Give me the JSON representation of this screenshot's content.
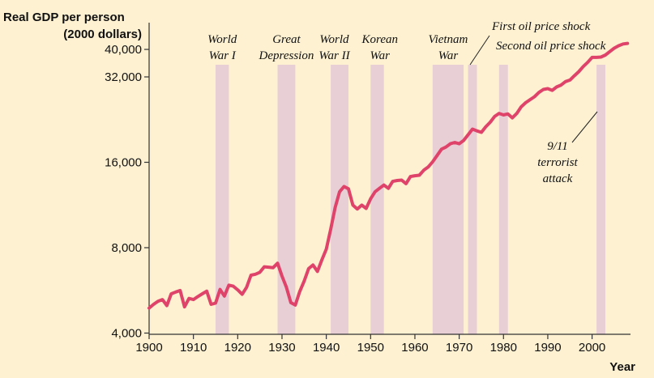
{
  "chart_data": {
    "type": "line",
    "title": "",
    "xlabel": "Year",
    "ylabel_lines": [
      "Real GDP per person",
      "(2000 dollars)"
    ],
    "yscale": "log",
    "ylim": [
      4000,
      44000
    ],
    "xlim": [
      1900,
      2010
    ],
    "yticks": [
      4000,
      8000,
      16000,
      32000,
      40000
    ],
    "ytick_labels": [
      "4,000",
      "8,000",
      "16,000",
      "32,000",
      "40,000"
    ],
    "xticks": [
      1900,
      1910,
      1920,
      1930,
      1940,
      1950,
      1960,
      1970,
      1980,
      1990,
      2000
    ],
    "xtick_labels": [
      "1900",
      "1910",
      "1920",
      "1930",
      "1940",
      "1950",
      "1960",
      "1970",
      "1980",
      "1990",
      "2000"
    ],
    "line_color": "#e0436a",
    "band_color": "#e8cfd6",
    "series": [
      {
        "name": "Real GDP per person",
        "x": [
          1900,
          1901,
          1902,
          1903,
          1904,
          1905,
          1906,
          1907,
          1908,
          1909,
          1910,
          1911,
          1912,
          1913,
          1914,
          1915,
          1916,
          1917,
          1918,
          1919,
          1920,
          1921,
          1922,
          1923,
          1924,
          1925,
          1926,
          1927,
          1928,
          1929,
          1930,
          1931,
          1932,
          1933,
          1934,
          1935,
          1936,
          1937,
          1938,
          1939,
          1940,
          1941,
          1942,
          1943,
          1944,
          1945,
          1946,
          1947,
          1948,
          1949,
          1950,
          1951,
          1952,
          1953,
          1954,
          1955,
          1956,
          1957,
          1958,
          1959,
          1960,
          1961,
          1962,
          1963,
          1964,
          1965,
          1966,
          1967,
          1968,
          1969,
          1970,
          1971,
          1972,
          1973,
          1974,
          1975,
          1976,
          1977,
          1978,
          1979,
          1980,
          1981,
          1982,
          1983,
          1984,
          1985,
          1986,
          1987,
          1988,
          1989,
          1990,
          1991,
          1992,
          1993,
          1994,
          1995,
          1996,
          1997,
          1998,
          1999,
          2000,
          2001,
          2002,
          2003,
          2004,
          2005,
          2006,
          2007,
          2008
        ],
        "y": [
          4900,
          5050,
          5180,
          5250,
          5000,
          5500,
          5580,
          5650,
          4950,
          5300,
          5250,
          5380,
          5500,
          5620,
          5050,
          5100,
          5700,
          5400,
          5900,
          5850,
          5680,
          5480,
          5800,
          6400,
          6450,
          6550,
          6850,
          6830,
          6800,
          7050,
          6350,
          5800,
          5120,
          5020,
          5600,
          6100,
          6750,
          6950,
          6600,
          7250,
          7900,
          9300,
          11100,
          12600,
          13150,
          12900,
          11300,
          10950,
          11300,
          11000,
          11900,
          12600,
          12950,
          13300,
          12950,
          13700,
          13800,
          13850,
          13450,
          14250,
          14350,
          14400,
          15000,
          15400,
          16050,
          16900,
          17800,
          18100,
          18600,
          18800,
          18600,
          19100,
          20000,
          20950,
          20650,
          20400,
          21350,
          22150,
          23200,
          23800,
          23500,
          23700,
          22950,
          23800,
          25100,
          25950,
          26600,
          27250,
          28200,
          28900,
          29100,
          28700,
          29500,
          29950,
          30800,
          31200,
          32300,
          33400,
          34800,
          36000,
          37500,
          37500,
          37600,
          38200,
          39300,
          40400,
          41200,
          41800,
          42000
        ]
      }
    ],
    "bands": [
      {
        "label_lines": [
          "World",
          "War I"
        ],
        "from": 1915,
        "to": 1918
      },
      {
        "label_lines": [
          "Great",
          "Depression"
        ],
        "from": 1929,
        "to": 1933
      },
      {
        "label_lines": [
          "World",
          "War II"
        ],
        "from": 1941,
        "to": 1945
      },
      {
        "label_lines": [
          "Korean",
          "War"
        ],
        "from": 1950,
        "to": 1953
      },
      {
        "label_lines": [
          "Vietnam",
          "War"
        ],
        "from": 1964,
        "to": 1971
      },
      {
        "label_lines": [
          "First oil price shock"
        ],
        "from": 1972,
        "to": 1974
      },
      {
        "label_lines": [
          "Second oil price shock"
        ],
        "from": 1979,
        "to": 1981
      },
      {
        "label_lines": [
          "9/11",
          "terrorist",
          "attack"
        ],
        "from": 2001,
        "to": 2003
      }
    ]
  }
}
